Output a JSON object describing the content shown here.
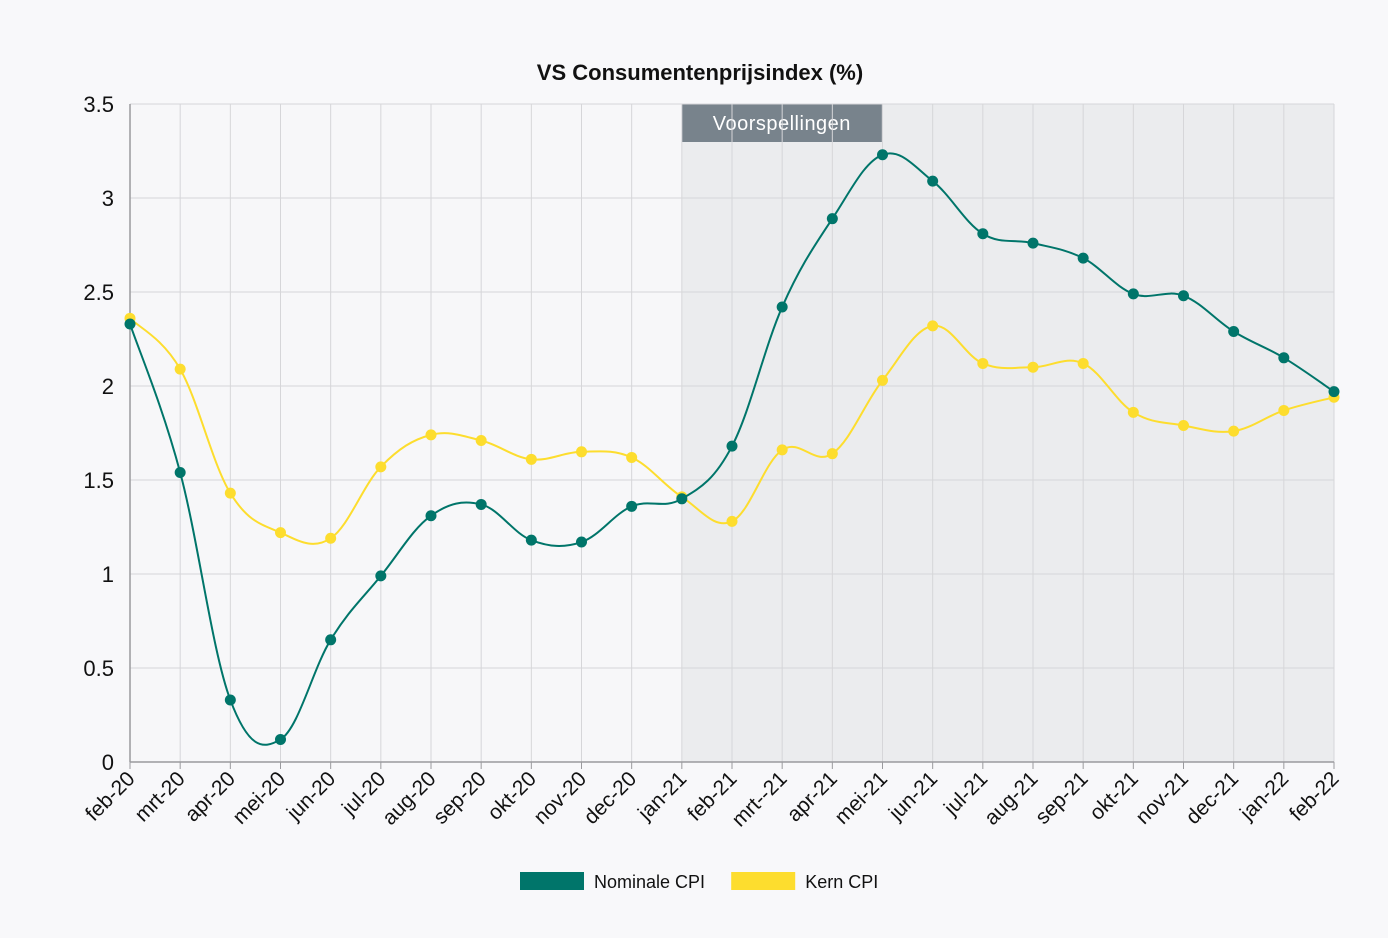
{
  "chart_data": {
    "type": "line",
    "title": "VS Consumentenprijsindex (%)",
    "categories": [
      "feb-20",
      "mrt-20",
      "apr-20",
      "mei-20",
      "jun-20",
      "jul-20",
      "aug-20",
      "sep-20",
      "okt-20",
      "nov-20",
      "dec-20",
      "jan-21",
      "feb-21",
      "mrt--21",
      "apr-21",
      "mei-21",
      "jun-21",
      "jul-21",
      "aug-21",
      "sep-21",
      "okt-21",
      "nov-21",
      "dec-21",
      "jan-22",
      "feb-22"
    ],
    "ylim": [
      0,
      3.5
    ],
    "yticks": [
      "0",
      "0.5",
      "1",
      "1.5",
      "2",
      "2.5",
      "3",
      "3.5"
    ],
    "grid": true,
    "legend_position": "bottom",
    "forecast_region": {
      "label": "Voorspellingen",
      "start": "jan-21",
      "end": "feb-22"
    },
    "series": [
      {
        "name": "Nominale CPI",
        "color": "#00756a",
        "values": [
          2.33,
          1.54,
          0.33,
          0.12,
          0.65,
          0.99,
          1.31,
          1.37,
          1.18,
          1.17,
          1.36,
          1.4,
          1.68,
          2.42,
          2.89,
          3.23,
          3.09,
          2.81,
          2.76,
          2.68,
          2.49,
          2.48,
          2.29,
          2.15,
          1.97
        ]
      },
      {
        "name": "Kern CPI",
        "color": "#fddd2e",
        "values": [
          2.36,
          2.09,
          1.43,
          1.22,
          1.19,
          1.57,
          1.74,
          1.71,
          1.61,
          1.65,
          1.62,
          1.41,
          1.28,
          1.66,
          1.64,
          2.03,
          2.32,
          2.12,
          2.1,
          2.12,
          1.86,
          1.79,
          1.76,
          1.87,
          1.94
        ]
      }
    ]
  }
}
